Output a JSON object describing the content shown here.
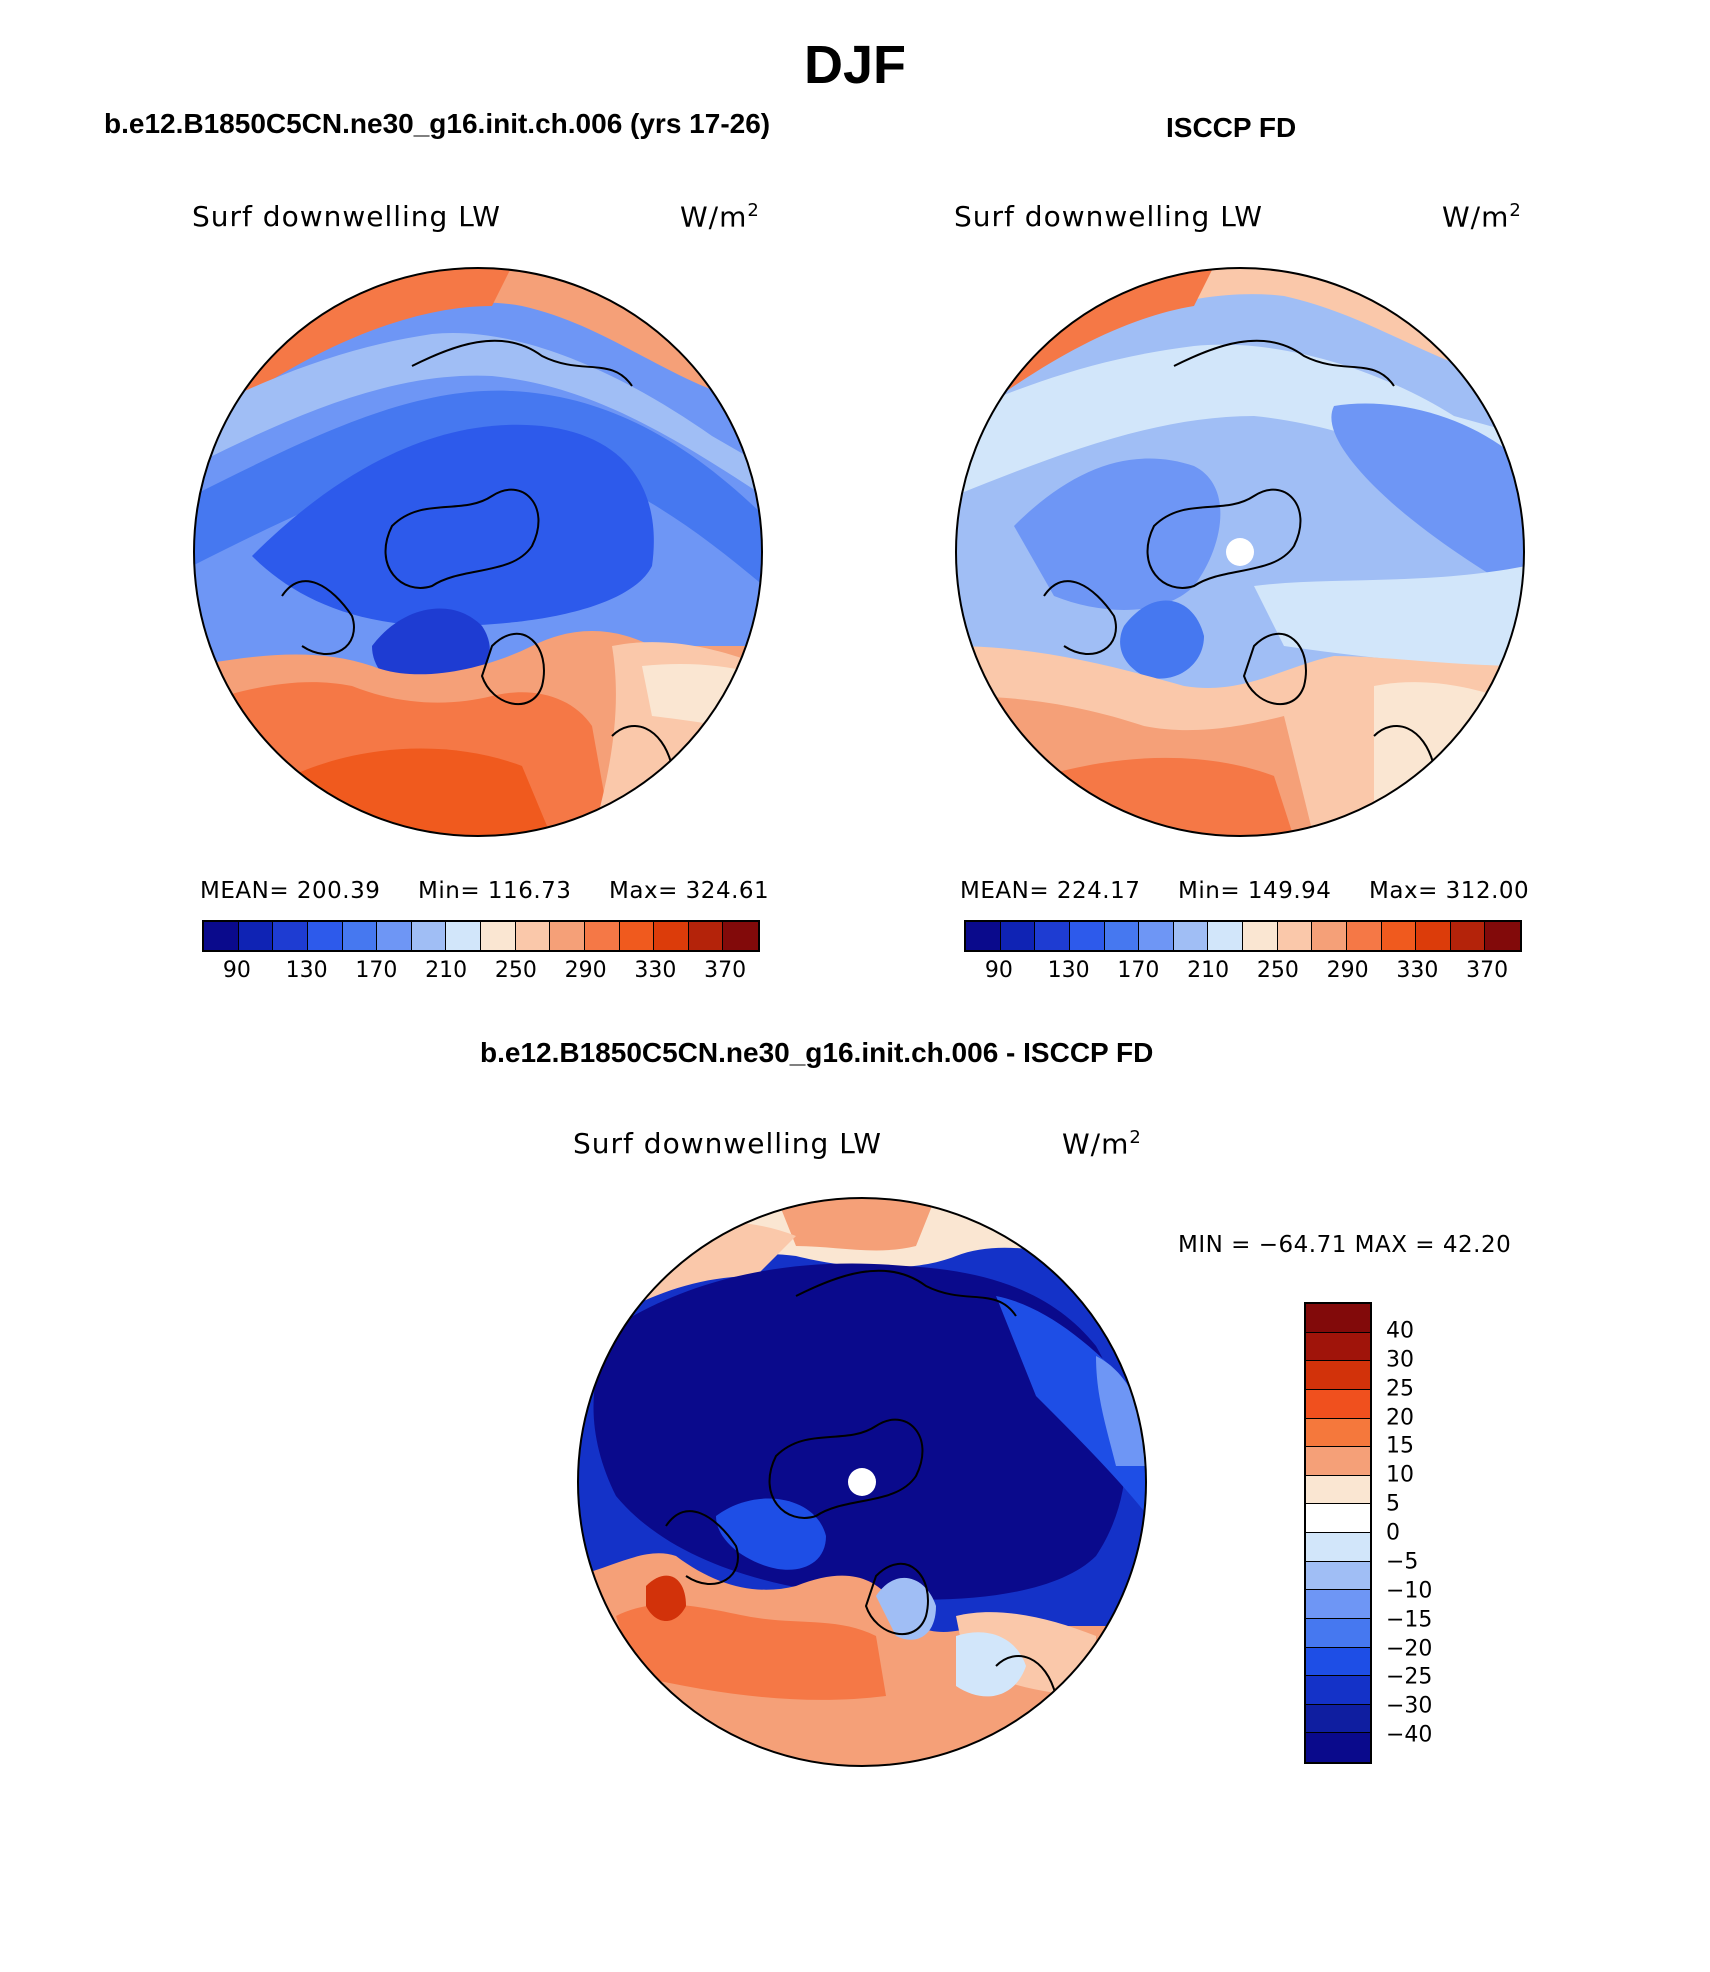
{
  "title": "DJF",
  "panels": {
    "model": {
      "subtitle": "b.e12.B1850C5CN.ne30_g16.init.ch.006 (yrs 17-26)",
      "variable": "Surf downwelling LW",
      "units_base": "W/m",
      "units_exp": "2",
      "mean_label": "MEAN=",
      "mean": "200.39",
      "min_label": "Min=",
      "min": "116.73",
      "max_label": "Max=",
      "max": "324.61"
    },
    "obs": {
      "subtitle": "ISCCP FD",
      "variable": "Surf downwelling LW",
      "units_base": "W/m",
      "units_exp": "2",
      "mean_label": "MEAN=",
      "mean": "224.17",
      "min_label": "Min=",
      "min": "149.94",
      "max_label": "Max=",
      "max": "312.00"
    },
    "diff": {
      "subtitle": "b.e12.B1850C5CN.ne30_g16.init.ch.006 - ISCCP FD",
      "variable": "Surf downwelling LW",
      "units_base": "W/m",
      "units_exp": "2",
      "minmax_text": "MIN = −64.71 MAX =  42.20"
    }
  },
  "colorbars": {
    "absolute": {
      "colors": [
        "#0a0a8c",
        "#0f23b4",
        "#1e3cd2",
        "#2d5aeb",
        "#4678f0",
        "#6e96f5",
        "#a0bef5",
        "#d2e6fa",
        "#fae6d2",
        "#fac8aa",
        "#f5a078",
        "#f57846",
        "#f05a1e",
        "#dc3c0a",
        "#b4230a",
        "#820a0a"
      ],
      "ticks": [
        "90",
        "130",
        "170",
        "210",
        "250",
        "290",
        "330",
        "370"
      ]
    },
    "difference": {
      "colors": [
        "#820a0a",
        "#a0140a",
        "#d2320a",
        "#f0501e",
        "#f5783c",
        "#f5a078",
        "#fae6d2",
        "#ffffff",
        "#d2e6fa",
        "#a0bef5",
        "#6e96f5",
        "#4678f0",
        "#1e4ee6",
        "#1432c8",
        "#0f1ea0",
        "#0a0a8c"
      ],
      "ticks": [
        "40",
        "30",
        "25",
        "20",
        "15",
        "10",
        "5",
        "0",
        "−5",
        "−10",
        "−15",
        "−20",
        "−25",
        "−30",
        "−40"
      ]
    }
  }
}
